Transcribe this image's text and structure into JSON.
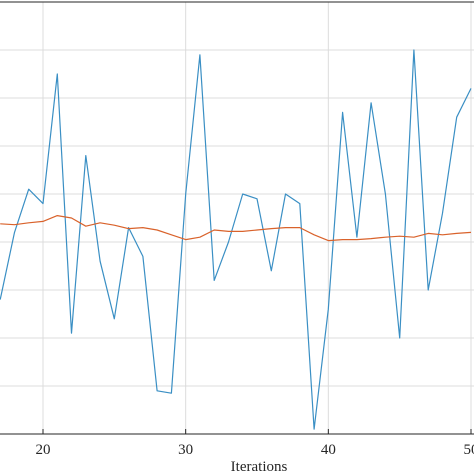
{
  "chart_data": {
    "type": "line",
    "xlabel": "Iterations",
    "ylabel": "",
    "title": "",
    "grid": true,
    "xlim": [
      17,
      50
    ],
    "ylim": [
      0,
      9
    ],
    "x_ticks": [
      20,
      30,
      40,
      50
    ],
    "x_tick_labels": [
      "20",
      "30",
      "40",
      "50"
    ],
    "series": [
      {
        "color": "#3a8fc4",
        "x": [
          17,
          18,
          19,
          20,
          21,
          22,
          23,
          24,
          25,
          26,
          27,
          28,
          29,
          30,
          31,
          32,
          33,
          34,
          35,
          36,
          37,
          38,
          39,
          40,
          41,
          42,
          43,
          44,
          45,
          46,
          47,
          48,
          49,
          50
        ],
        "values": [
          2.8,
          4.2,
          5.1,
          4.8,
          7.5,
          2.1,
          5.8,
          3.6,
          2.4,
          4.3,
          3.7,
          0.9,
          0.85,
          5.0,
          7.9,
          3.2,
          4.0,
          5.0,
          4.9,
          3.4,
          5.0,
          4.8,
          0.1,
          2.6,
          6.7,
          4.1,
          6.9,
          5.0,
          2.0,
          8.0,
          3.0,
          4.6,
          6.6,
          7.2
        ],
        "line_width": 1.2
      },
      {
        "color": "#d9622b",
        "x": [
          17,
          18,
          19,
          20,
          21,
          22,
          23,
          24,
          25,
          26,
          27,
          28,
          29,
          30,
          31,
          32,
          33,
          34,
          35,
          36,
          37,
          38,
          39,
          40,
          41,
          42,
          43,
          44,
          45,
          46,
          47,
          48,
          49,
          50
        ],
        "values": [
          4.38,
          4.36,
          4.4,
          4.43,
          4.55,
          4.5,
          4.33,
          4.4,
          4.35,
          4.28,
          4.3,
          4.25,
          4.15,
          4.05,
          4.1,
          4.25,
          4.22,
          4.22,
          4.25,
          4.28,
          4.3,
          4.3,
          4.15,
          4.03,
          4.05,
          4.05,
          4.07,
          4.1,
          4.12,
          4.1,
          4.18,
          4.15,
          4.18,
          4.2
        ],
        "line_width": 1.2
      }
    ]
  }
}
